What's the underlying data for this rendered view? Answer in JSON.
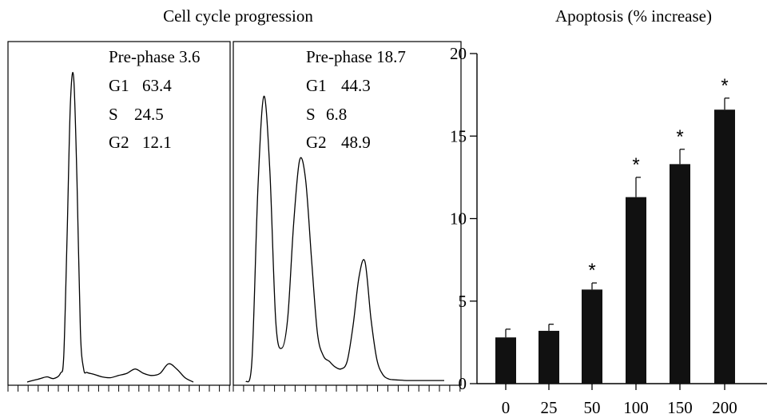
{
  "chart_data": [
    {
      "type": "line",
      "panel": "flow-cytometry-control",
      "title": "Cell cycle progression",
      "stats": [
        {
          "label": "Pre-phase",
          "value": "3.6"
        },
        {
          "label": "G1",
          "value": "63.4"
        },
        {
          "label": "S",
          "value": "24.5"
        },
        {
          "label": "G2",
          "value": "12.1"
        }
      ],
      "x": [
        0,
        4,
        8,
        12,
        16,
        20,
        22,
        24,
        26,
        28,
        30,
        32,
        34,
        36,
        40,
        45,
        50,
        55,
        60,
        65,
        70,
        75,
        80,
        85,
        90,
        95,
        100
      ],
      "values": [
        0,
        4,
        8,
        12,
        8,
        20,
        60,
        330,
        640,
        700,
        460,
        120,
        30,
        22,
        18,
        12,
        10,
        15,
        20,
        30,
        20,
        15,
        20,
        42,
        30,
        10,
        0
      ],
      "ylim": [
        0,
        750
      ],
      "xlim": [
        0,
        100
      ],
      "grid": false
    },
    {
      "type": "line",
      "panel": "flow-cytometry-treated",
      "stats": [
        {
          "label": "Pre-phase",
          "value": "18.7"
        },
        {
          "label": "G1",
          "value": "44.3"
        },
        {
          "label": "S",
          "value": "6.8"
        },
        {
          "label": "G2",
          "value": "48.9"
        }
      ],
      "x": [
        0,
        3,
        6,
        9,
        12,
        15,
        18,
        21,
        24,
        27,
        30,
        33,
        36,
        39,
        42,
        45,
        48,
        51,
        54,
        57,
        60,
        63,
        66,
        69,
        72,
        75,
        78,
        81,
        84,
        87,
        90,
        93,
        96,
        100
      ],
      "values": [
        0,
        60,
        520,
        760,
        560,
        160,
        90,
        170,
        420,
        590,
        540,
        330,
        130,
        70,
        55,
        40,
        35,
        55,
        150,
        280,
        320,
        170,
        60,
        20,
        8,
        6,
        5,
        4,
        4,
        4,
        4,
        4,
        4,
        4
      ],
      "ylim": [
        0,
        850
      ],
      "xlim": [
        0,
        100
      ],
      "grid": false
    },
    {
      "type": "bar",
      "panel": "apoptosis",
      "title": "Apoptosis (% increase)",
      "categories": [
        "0",
        "25",
        "50",
        "100",
        "150",
        "200"
      ],
      "values": [
        2.8,
        3.2,
        5.7,
        11.3,
        13.3,
        16.6
      ],
      "errors": [
        0.5,
        0.4,
        0.4,
        1.2,
        0.9,
        0.7
      ],
      "significance": [
        "",
        "",
        "*",
        "*",
        "*",
        "*"
      ],
      "ylim": [
        0,
        20
      ],
      "yticks": [
        "0",
        "5",
        "10",
        "15",
        "20"
      ],
      "grid": false
    }
  ]
}
